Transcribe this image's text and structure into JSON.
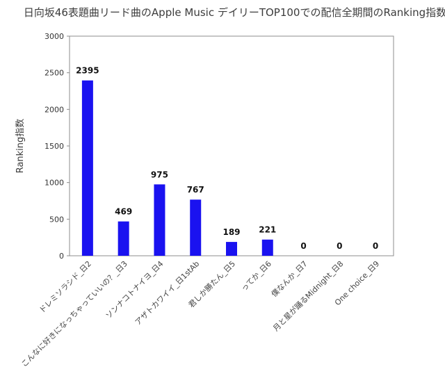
{
  "chart_data": {
    "type": "bar",
    "title": "日向坂46表題曲リード曲のApple Music デイリーTOP100での配信全期間のRanking指数",
    "xlabel": "",
    "ylabel": "Ranking指数",
    "ylim": [
      0,
      3000
    ],
    "yticks": [
      0,
      500,
      1000,
      1500,
      2000,
      2500,
      3000
    ],
    "grid": false,
    "categories": [
      "ドレミソラシド_日2",
      "こんなに好きになっちゃっていいの？_日3",
      "ソンナコトナイヨ_日4",
      "アザトカワイイ_日1stAb",
      "君しか勝たん_日5",
      "ってか_日6",
      "僕なんか_日7",
      "月と星が踊るMidnight_日8",
      "One choice_日9"
    ],
    "values": [
      2395,
      469,
      975,
      767,
      189,
      221,
      0,
      0,
      0
    ],
    "data_labels": [
      "2395",
      "469",
      "975",
      "767",
      "189",
      "221",
      "0",
      "0",
      "0"
    ],
    "colors": {
      "bar": "#1a12f0",
      "axis": "#8c8c8c",
      "text": "#333333"
    }
  }
}
